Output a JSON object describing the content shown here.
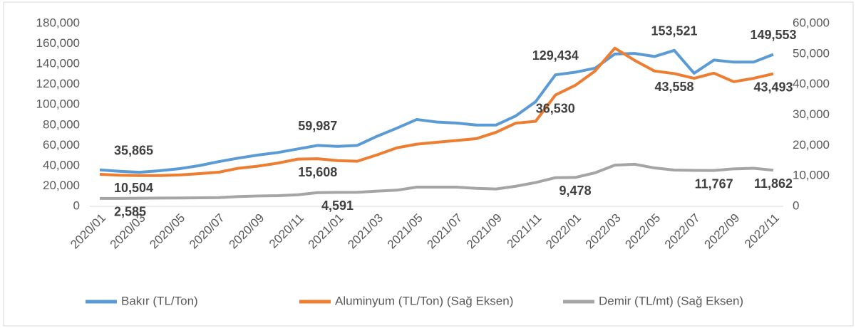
{
  "chart_data": {
    "type": "line",
    "categories": [
      "2020/01",
      null,
      "2020/03",
      null,
      "2020/05",
      null,
      "2020/07",
      null,
      "2020/09",
      null,
      "2020/11",
      null,
      "2021/01",
      null,
      "2021/03",
      null,
      "2021/05",
      null,
      "2021/07",
      null,
      "2021/09",
      null,
      "2021/11",
      null,
      "2022/01",
      null,
      "2022/03",
      null,
      "2022/05",
      null,
      "2022/07",
      null,
      "2022/09",
      null,
      "2022/11"
    ],
    "series": [
      {
        "name": "Bakır (TL/Ton)",
        "color": "#5b9bd5",
        "values": [
          35865,
          34500,
          33500,
          35000,
          37000,
          40000,
          44000,
          47500,
          50500,
          53000,
          56500,
          59987,
          59000,
          60000,
          69000,
          77000,
          85500,
          83000,
          82000,
          80000,
          80000,
          89000,
          103000,
          129434,
          132000,
          136000,
          150000,
          150500,
          147500,
          153521,
          131000,
          144000,
          142000,
          142000,
          149553
        ],
        "value_labels": [
          "35,865",
          null,
          null,
          null,
          null,
          null,
          null,
          null,
          null,
          null,
          null,
          "59,987",
          null,
          null,
          null,
          null,
          null,
          null,
          null,
          null,
          null,
          null,
          null,
          "129,434",
          null,
          null,
          null,
          null,
          null,
          "153,521",
          null,
          null,
          null,
          null,
          "149,553"
        ]
      },
      {
        "name": "Aluminyum (TL/Ton) (Sağ Eksen)",
        "color": "#ed7d31",
        "axis": "y2",
        "values": [
          10504,
          10200,
          10100,
          10100,
          10300,
          10700,
          11200,
          12500,
          13200,
          14200,
          15500,
          15608,
          15000,
          14800,
          16900,
          19200,
          20400,
          21000,
          21600,
          22200,
          24300,
          27300,
          27900,
          36530,
          39700,
          44400,
          51900,
          47900,
          44400,
          43558,
          42000,
          43700,
          40900,
          42000,
          43493
        ],
        "value_labels": [
          "10,504",
          null,
          null,
          null,
          null,
          null,
          null,
          null,
          null,
          null,
          null,
          "15,608",
          null,
          null,
          null,
          null,
          null,
          null,
          null,
          null,
          null,
          null,
          null,
          "36,530",
          null,
          null,
          null,
          null,
          null,
          "43,558",
          null,
          null,
          null,
          null,
          "43,493"
        ]
      },
      {
        "name": "Demir (TL/mt) (Sağ Eksen)",
        "color": "#a5a5a5",
        "axis": "y2",
        "values": [
          2585,
          2600,
          2650,
          2700,
          2750,
          2800,
          2850,
          3200,
          3400,
          3500,
          3800,
          4500,
          4591,
          4600,
          5000,
          5300,
          6300,
          6300,
          6300,
          5900,
          5700,
          6600,
          7800,
          9400,
          9478,
          11000,
          13500,
          13800,
          12600,
          11900,
          11800,
          11767,
          12300,
          12500,
          11862
        ],
        "value_labels": [
          "2,585",
          null,
          null,
          null,
          null,
          null,
          null,
          null,
          null,
          null,
          null,
          null,
          "4,591",
          null,
          null,
          null,
          null,
          null,
          null,
          null,
          null,
          null,
          null,
          null,
          "9,478",
          null,
          null,
          null,
          null,
          null,
          null,
          "11,767",
          null,
          null,
          "11,862"
        ]
      }
    ],
    "ylim": [
      0,
      180000
    ],
    "yticks": [
      0,
      {
        "value": 20000,
        "label": "20,000"
      },
      {
        "value": 40000,
        "label": "40,000"
      },
      {
        "value": 60000,
        "label": "60,000"
      },
      {
        "value": 80000,
        "label": "80,000"
      },
      {
        "value": 100000,
        "label": "100,000"
      },
      {
        "value": 120000,
        "label": "120,000"
      },
      {
        "value": 140000,
        "label": "140,000"
      },
      {
        "value": 160000,
        "label": "160,000"
      },
      {
        "value": 180000,
        "label": "180,000"
      }
    ],
    "y2lim": [
      0,
      60000
    ],
    "y2ticks": [
      0,
      {
        "value": 10000,
        "label": "10,000"
      },
      {
        "value": 20000,
        "label": "20,000"
      },
      {
        "value": 30000,
        "label": "30,000"
      },
      {
        "value": 40000,
        "label": "40,000"
      },
      {
        "value": 50000,
        "label": "50,000"
      },
      {
        "value": 60000,
        "label": "60,000"
      }
    ],
    "legend": "bottom",
    "grid": false
  }
}
